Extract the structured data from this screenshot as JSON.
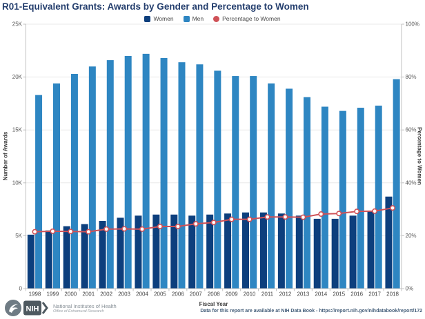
{
  "page": {
    "title": "R01-Equivalent Grants: Awards by Gender and Percentage to Women"
  },
  "chart_data": {
    "type": "bar",
    "title": "R01-Equivalent Grants: Awards by Gender and Percentage to Women",
    "categories": [
      "1998",
      "1999",
      "2000",
      "2001",
      "2002",
      "2003",
      "2004",
      "2005",
      "2006",
      "2007",
      "2008",
      "2009",
      "2010",
      "2011",
      "2012",
      "2013",
      "2014",
      "2015",
      "2016",
      "2017",
      "2018"
    ],
    "series": [
      {
        "name": "Women",
        "kind": "bar",
        "axis": "left",
        "color": "#0d3f7d",
        "values": [
          5100,
          5500,
          5900,
          6100,
          6400,
          6700,
          6900,
          7000,
          7000,
          6900,
          7000,
          7100,
          7200,
          7200,
          7100,
          6900,
          6600,
          6600,
          6900,
          7300,
          8700
        ]
      },
      {
        "name": "Men",
        "kind": "bar",
        "axis": "left",
        "color": "#2e86c2",
        "values": [
          18300,
          19400,
          20300,
          21000,
          21600,
          22000,
          22200,
          21800,
          21400,
          21200,
          20600,
          20100,
          20100,
          19400,
          18900,
          18100,
          17200,
          16800,
          17100,
          17300,
          19800
        ]
      },
      {
        "name": "Percentage to Women",
        "kind": "line",
        "axis": "right",
        "color": "#cf5157",
        "values": [
          21.5,
          21.7,
          21.6,
          21.5,
          22.5,
          22.6,
          22.5,
          23.5,
          23.5,
          24.5,
          25.0,
          26.2,
          26.2,
          27.1,
          27.1,
          27.0,
          28.2,
          28.4,
          29.2,
          29.3,
          30.5
        ]
      }
    ],
    "xlabel": "Fiscal Year",
    "ylabel_left": "Number of Awards",
    "ylabel_right": "Percentage to Women",
    "ylim_left": [
      0,
      25000
    ],
    "ylim_right": [
      0,
      100
    ],
    "y_ticks_left": [
      "0",
      "5K",
      "10K",
      "15K",
      "20K",
      "25K"
    ],
    "y_ticks_right": [
      "0%",
      "20%",
      "40%",
      "60%",
      "80%",
      "100%"
    ],
    "grid": true,
    "legend_position": "top-center"
  },
  "footer": {
    "nih_acronym": "NIH",
    "org_name": "National Institutes of Health",
    "org_sub": "Office of Extramural Research",
    "note": "Data for this report are available at NIH Data Book - https://report.nih.gov/nihdatabook/report/172"
  }
}
